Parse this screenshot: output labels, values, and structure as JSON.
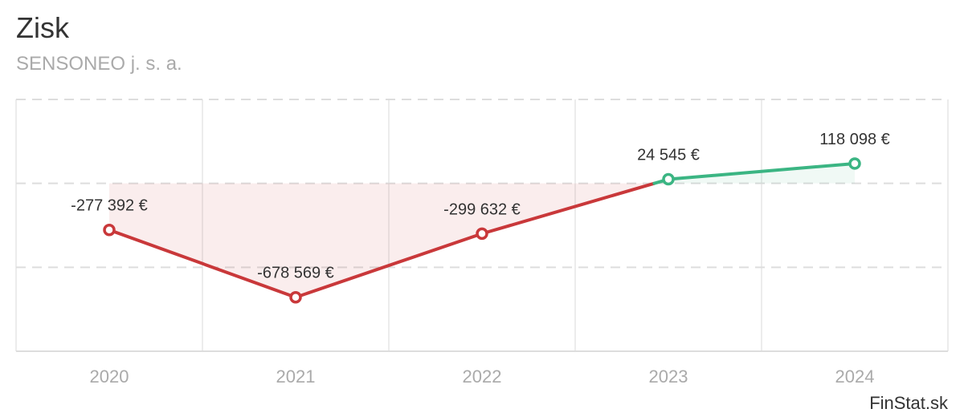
{
  "title": "Zisk",
  "subtitle": "SENSONEO j. s. a.",
  "brand": "FinStat.sk",
  "colors": {
    "negative": "#c9383a",
    "positive": "#3bb583",
    "grid": "#dddddd",
    "tick": "#aaaaaa"
  },
  "chart_data": {
    "type": "line",
    "categories": [
      "2020",
      "2021",
      "2022",
      "2023",
      "2024"
    ],
    "values": [
      -277392,
      -678569,
      -299632,
      24545,
      118098
    ],
    "labels": [
      "-277 392 €",
      "-678 569 €",
      "-299 632 €",
      "24 545 €",
      "118 098 €"
    ],
    "ylim": [
      -1000000,
      500000
    ],
    "zero_fill": true,
    "grid": true
  }
}
